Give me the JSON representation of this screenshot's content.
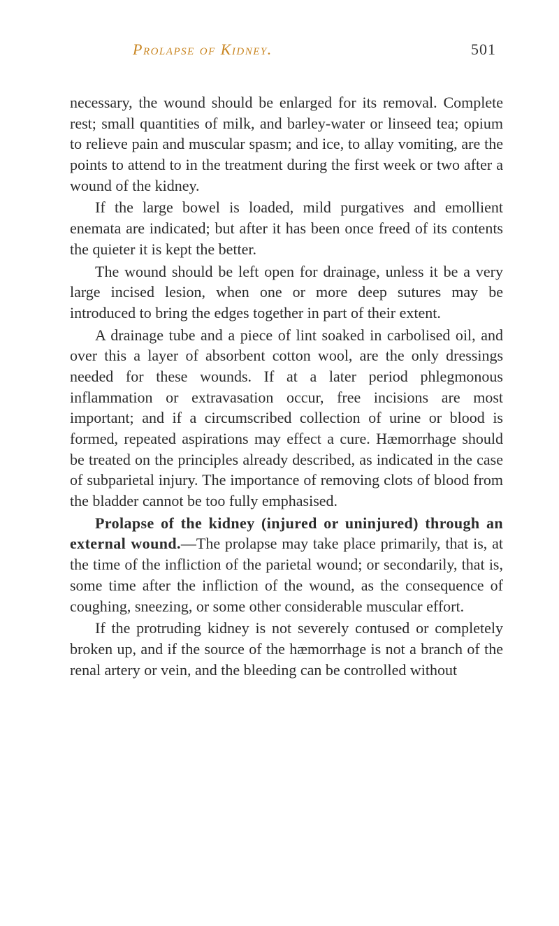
{
  "header": {
    "running_title": "Prolapse of Kidney.",
    "page_number": "501"
  },
  "paragraphs": {
    "p1": "necessary, the wound should be enlarged for its removal. Complete rest; small quantities of milk, and barley-water or linseed tea; opium to relieve pain and muscular spasm; and ice, to allay vomiting, are the points to attend to in the treatment during the first week or two after a wound of the kidney.",
    "p2": "If the large bowel is loaded, mild purgatives and emollient enemata are indicated; but after it has been once freed of its contents the quieter it is kept the better.",
    "p3": "The wound should be left open for drainage, unless it be a very large incised lesion, when one or more deep sutures may be introduced to bring the edges together in part of their extent.",
    "p4": "A drainage tube and a piece of lint soaked in carbolised oil, and over this a layer of absorbent cotton wool, are the only dressings needed for these wounds. If at a later period phlegmonous inflammation or extravasation occur, free incisions are most important; and if a circumscribed collection of urine or blood is formed, repeated aspirations may effect a cure. Hæmorrhage should be treated on the principles already described, as indicated in the case of subparietal injury. The importance of removing clots of blood from the bladder cannot be too fully emphasised.",
    "p5_lead": "Prolapse of the kidney (injured or uninjured) through an external wound.",
    "p5_rest": "—The prolapse may take place primarily, that is, at the time of the infliction of the parietal wound; or secondarily, that is, some time after the infliction of the wound, as the consequence of coughing, sneezing, or some other considerable muscular effort.",
    "p6": "If the protruding kidney is not severely contused or completely broken up, and if the source of the hæmorrhage is not a branch of the renal artery or vein, and the bleeding can be controlled without"
  },
  "colors": {
    "text": "#2b2b2b",
    "accent": "#c8841f",
    "background": "#ffffff"
  },
  "typography": {
    "body_fontsize": 22,
    "header_fontsize": 22,
    "line_height": 1.35
  }
}
